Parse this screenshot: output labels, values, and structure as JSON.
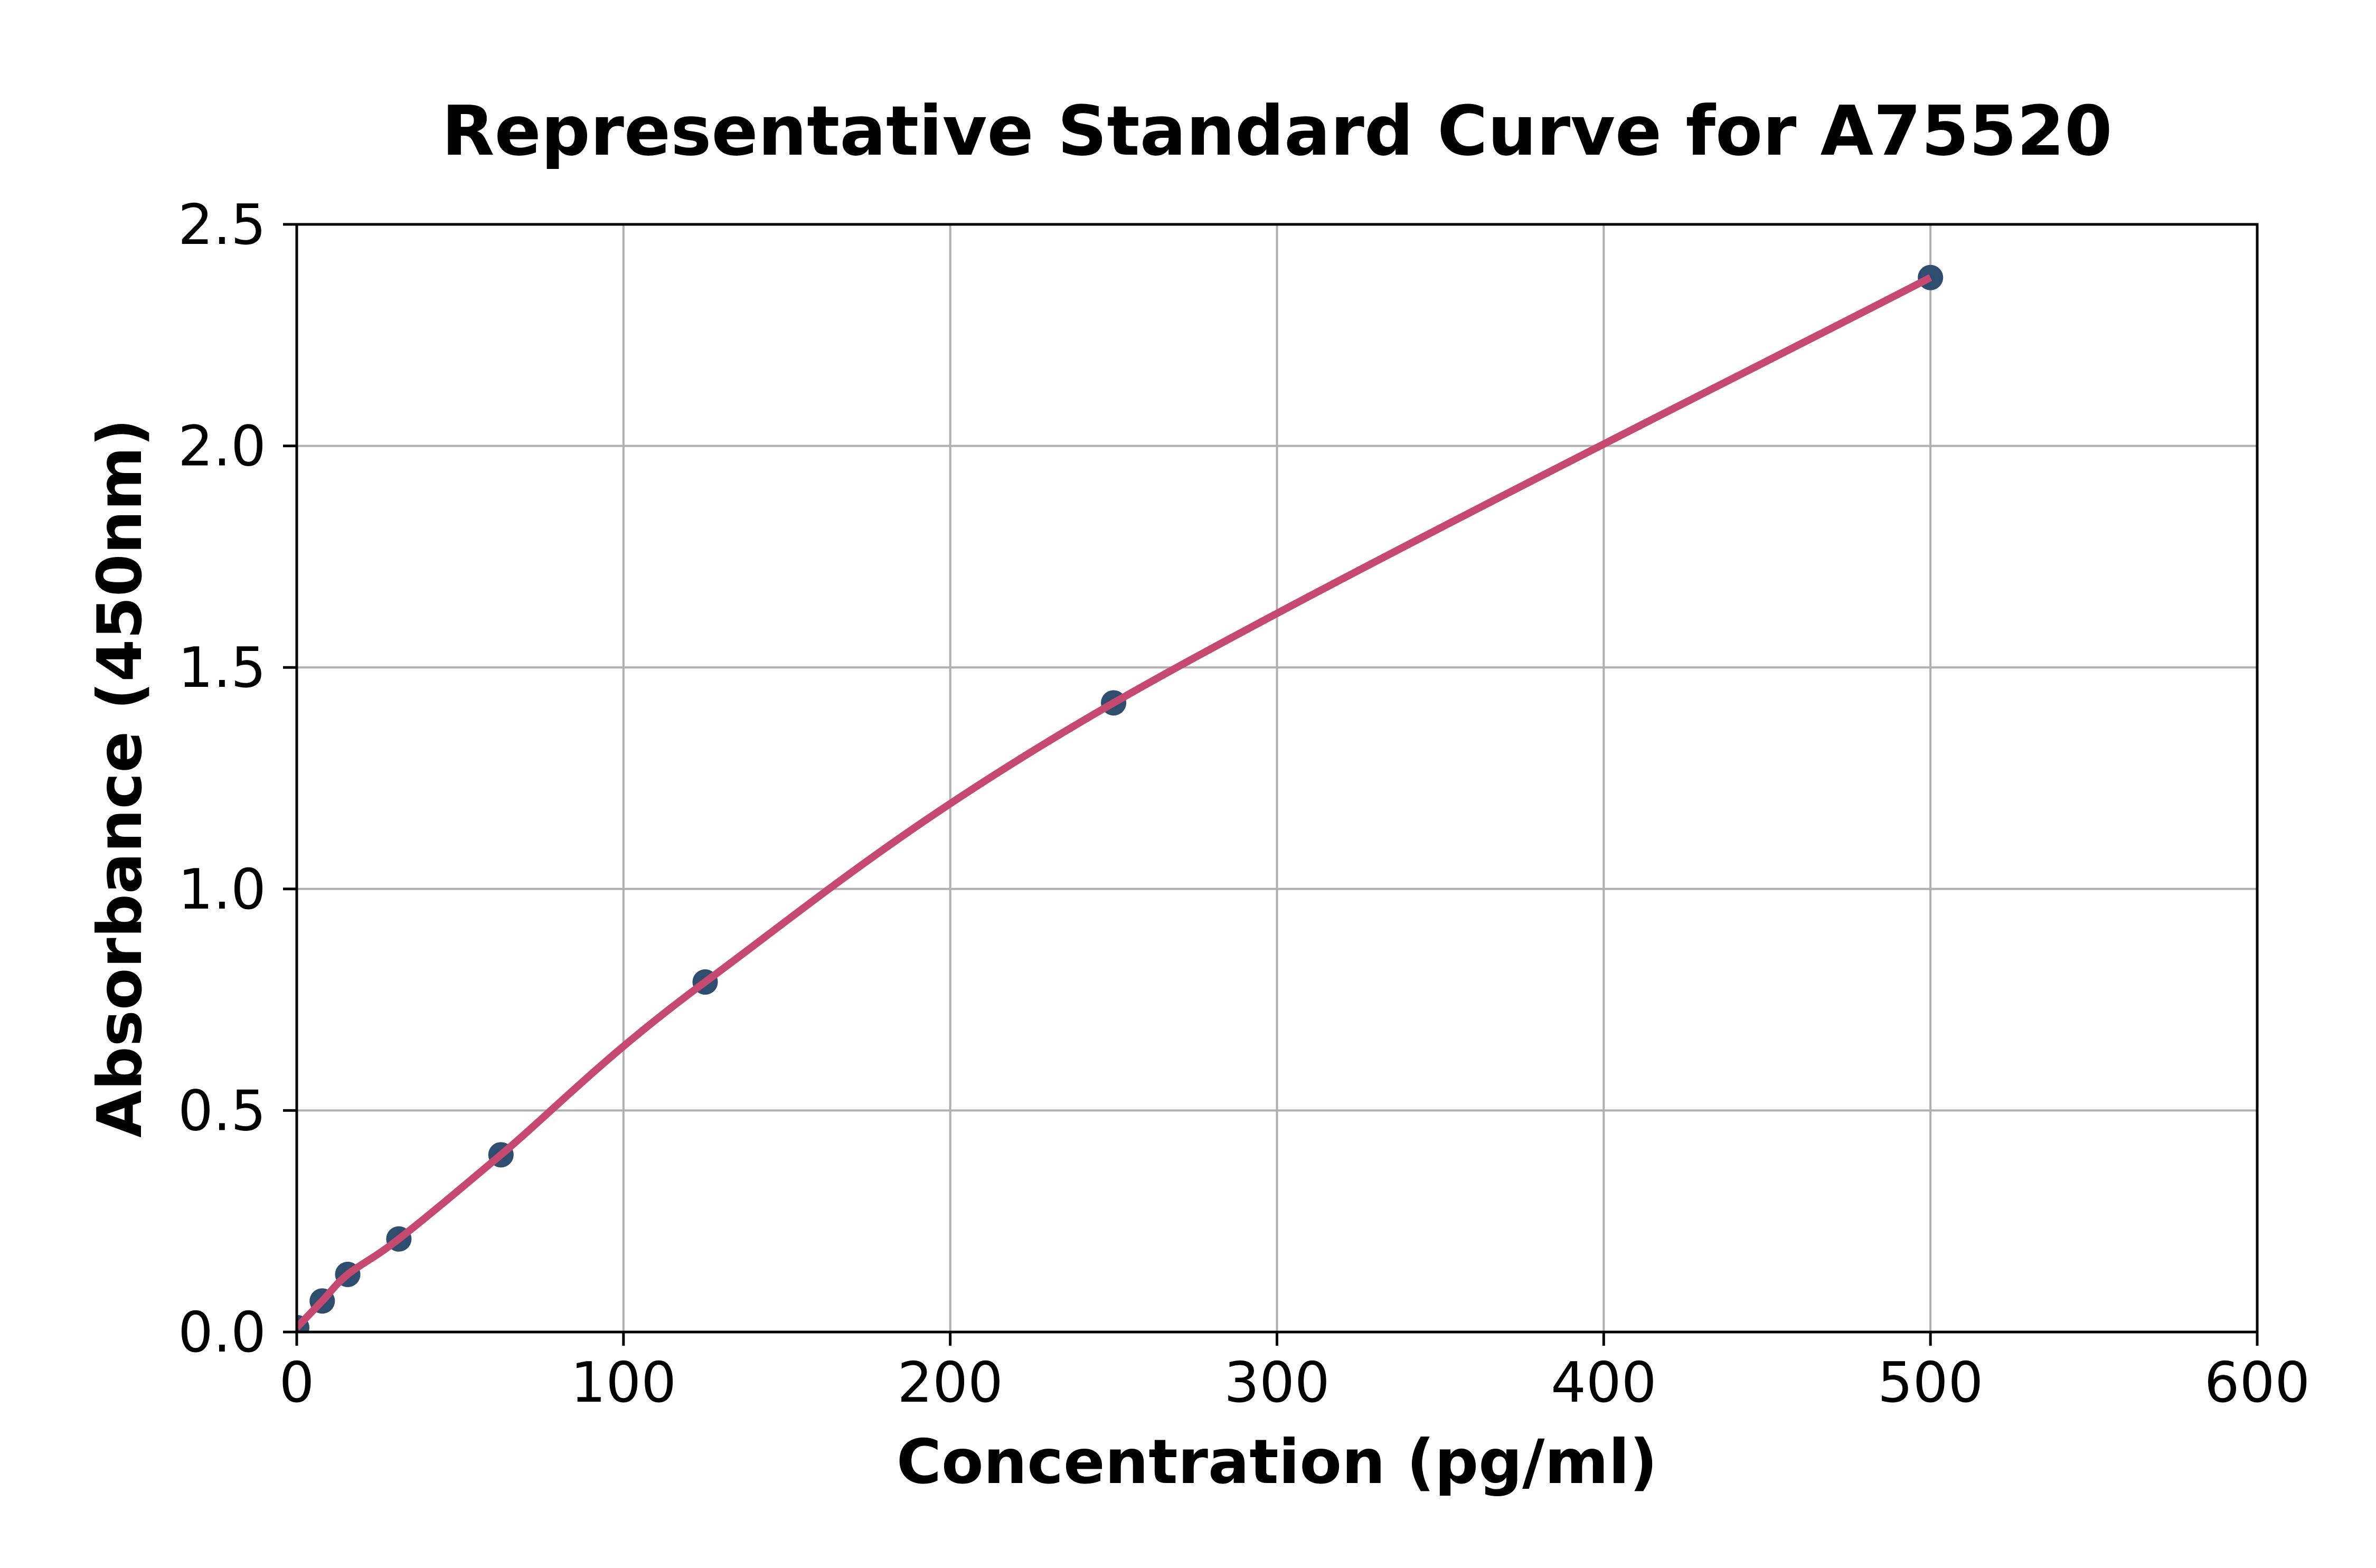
{
  "chart_data": {
    "type": "scatter",
    "title": "Representative Standard Curve for A75520",
    "xlabel": "Concentration (pg/ml)",
    "ylabel": "Absorbance (450nm)",
    "xlim": [
      0,
      600
    ],
    "ylim": [
      0,
      2.5
    ],
    "xticks": [
      0,
      100,
      200,
      300,
      400,
      500,
      600
    ],
    "xtick_labels": [
      "0",
      "100",
      "200",
      "300",
      "400",
      "500",
      "600"
    ],
    "yticks": [
      0,
      0.5,
      1.0,
      1.5,
      2.0,
      2.5
    ],
    "ytick_labels": [
      "0.0",
      "0.5",
      "1.0",
      "1.5",
      "2.0",
      "2.5"
    ],
    "grid": true,
    "legend_position": "none",
    "series": [
      {
        "name": "standard-points",
        "points": [
          [
            0,
            0.01
          ],
          [
            7.8,
            0.07
          ],
          [
            15.6,
            0.13
          ],
          [
            31.25,
            0.21
          ],
          [
            62.5,
            0.4
          ],
          [
            125,
            0.79
          ],
          [
            250,
            1.42
          ],
          [
            500,
            2.38
          ]
        ]
      }
    ],
    "colors": {
      "line": "#c6496f",
      "marker": "#2f4d6e",
      "grid": "#b0b0b0",
      "axis": "#000000",
      "background": "#ffffff"
    }
  }
}
